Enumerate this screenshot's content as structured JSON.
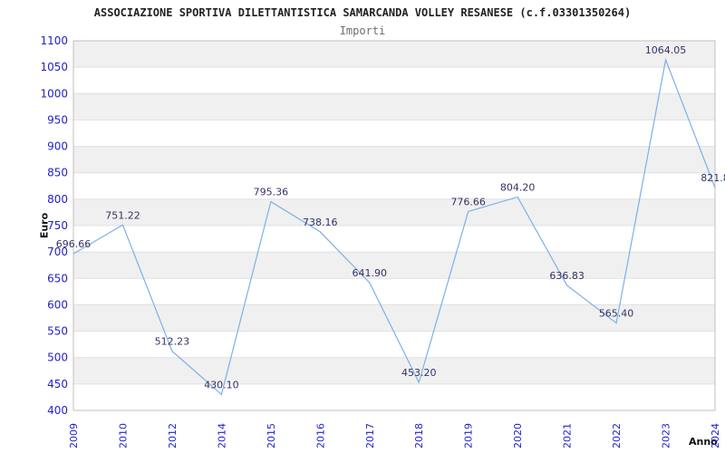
{
  "title": "ASSOCIAZIONE SPORTIVA DILETTANTISTICA SAMARCANDA VOLLEY RESANESE (c.f.03301350264)",
  "subtitle": "Importi",
  "chart_data": {
    "type": "line",
    "categories": [
      "2009",
      "2010",
      "2012",
      "2014",
      "2015",
      "2016",
      "2017",
      "2018",
      "2019",
      "2020",
      "2021",
      "2022",
      "2023",
      "2024"
    ],
    "values": [
      696.66,
      751.22,
      512.23,
      430.1,
      795.36,
      738.16,
      641.9,
      453.2,
      776.66,
      804.2,
      636.83,
      565.4,
      1064.05,
      821.8
    ],
    "point_labels": [
      "696.66",
      "751.22",
      "512.23",
      "430.10",
      "795.36",
      "738.16",
      "641.90",
      "453.20",
      "776.66",
      "804.20",
      "636.83",
      "565.40",
      "1064.05",
      "821.8"
    ],
    "xlabel": "Anno",
    "ylabel": "Euro",
    "ylim": [
      400,
      1100
    ],
    "ytick_step": 50,
    "yticks": [
      400,
      450,
      500,
      550,
      600,
      650,
      700,
      750,
      800,
      850,
      900,
      950,
      1000,
      1050,
      1100
    ],
    "legend": "none",
    "grid": "horizontal-alternating-bands",
    "colors": {
      "line": "#7db0e8",
      "tick_label": "#2222cc",
      "data_label": "#333366",
      "band_gray": "#f0f0f0",
      "band_white": "#ffffff",
      "grid_line": "#e0e0e0",
      "plot_border": "#c0c0c0"
    }
  }
}
